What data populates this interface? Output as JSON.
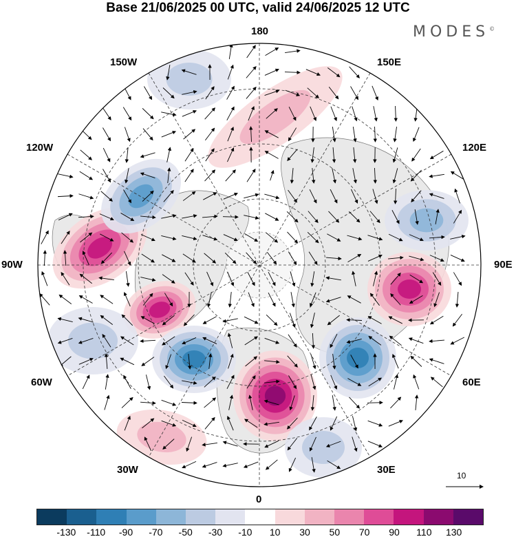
{
  "title": "Base 21/06/2025 00 UTC, valid 24/06/2025 12 UTC",
  "brand": "MODES",
  "brand_mark": "©",
  "longitude_labels": {
    "lon_180": "180",
    "lon_150w": "150W",
    "lon_150e": "150E",
    "lon_120w": "120W",
    "lon_120e": "120E",
    "lon_90w": "90W",
    "lon_90e": "90E",
    "lon_60w": "60W",
    "lon_60e": "60E",
    "lon_30w": "30W",
    "lon_30e": "30E",
    "lon_0": "0"
  },
  "reference_vector": {
    "label": "10"
  },
  "colorbar": {
    "ticks": [
      "-130",
      "-110",
      "-90",
      "-70",
      "-50",
      "-30",
      "-10",
      "10",
      "30",
      "50",
      "70",
      "90",
      "110",
      "130"
    ],
    "colors": [
      "#0b3b5e",
      "#1a5f8f",
      "#2f7fb5",
      "#5a9ccb",
      "#8db6d8",
      "#bccbe2",
      "#e2e4f0",
      "#ffffff",
      "#f8d9dc",
      "#f1b3c3",
      "#ea85ad",
      "#df4c97",
      "#c4157d",
      "#8b0a6f",
      "#5a0a6a"
    ]
  },
  "anomaly_centers": [
    {
      "name": "pos-120w-90w",
      "sign": "positive",
      "level": 90
    },
    {
      "name": "neg-120w",
      "sign": "negative",
      "level": -70
    },
    {
      "name": "pos-75w",
      "sign": "positive",
      "level": 90
    },
    {
      "name": "neg-50w",
      "sign": "negative",
      "level": -90
    },
    {
      "name": "pos-0",
      "sign": "positive",
      "level": 110
    },
    {
      "name": "neg-45e",
      "sign": "negative",
      "level": -90
    },
    {
      "name": "pos-80e",
      "sign": "positive",
      "level": 90
    },
    {
      "name": "neg-110e",
      "sign": "negative",
      "level": -50
    },
    {
      "name": "neg-150w",
      "sign": "negative",
      "level": -30
    },
    {
      "name": "pos-160e",
      "sign": "positive",
      "level": 30
    },
    {
      "name": "neg-60w-south",
      "sign": "negative",
      "level": -30
    },
    {
      "name": "pos-30w",
      "sign": "positive",
      "level": 30
    },
    {
      "name": "neg-15e",
      "sign": "negative",
      "level": -30
    }
  ]
}
